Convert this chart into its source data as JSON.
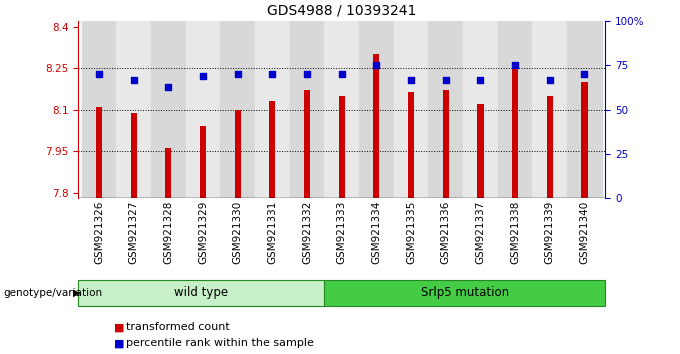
{
  "title": "GDS4988 / 10393241",
  "samples": [
    "GSM921326",
    "GSM921327",
    "GSM921328",
    "GSM921329",
    "GSM921330",
    "GSM921331",
    "GSM921332",
    "GSM921333",
    "GSM921334",
    "GSM921335",
    "GSM921336",
    "GSM921337",
    "GSM921338",
    "GSM921339",
    "GSM921340"
  ],
  "transformed_counts": [
    8.11,
    8.09,
    7.96,
    8.04,
    8.1,
    8.13,
    8.17,
    8.15,
    8.3,
    8.165,
    8.17,
    8.12,
    8.25,
    8.15,
    8.2
  ],
  "percentile_ranks": [
    70,
    67,
    63,
    69,
    70,
    70,
    70,
    70,
    75,
    67,
    67,
    67,
    75,
    67,
    70
  ],
  "ylim_left": [
    7.78,
    8.42
  ],
  "ylim_right": [
    0,
    100
  ],
  "yticks_left": [
    7.8,
    7.95,
    8.1,
    8.25,
    8.4
  ],
  "ytick_labels_left": [
    "7.8",
    "7.95",
    "8.1",
    "8.25",
    "8.4"
  ],
  "yticks_right": [
    0,
    25,
    50,
    75,
    100
  ],
  "ytick_labels_right": [
    "0",
    "25",
    "50",
    "75",
    "100%"
  ],
  "hlines": [
    7.95,
    8.1,
    8.25
  ],
  "group1_label": "wild type",
  "group2_label": "Srlp5 mutation",
  "group1_count": 7,
  "bar_color": "#cc0000",
  "dot_color": "#0000cc",
  "group1_bg": "#c8f0c8",
  "group2_bg": "#44cc44",
  "bar_width": 0.18,
  "tick_fontsize": 7.5,
  "title_fontsize": 10,
  "legend_fontsize": 8,
  "xtick_bg_even": "#d8d8d8",
  "xtick_bg_odd": "#e8e8e8"
}
